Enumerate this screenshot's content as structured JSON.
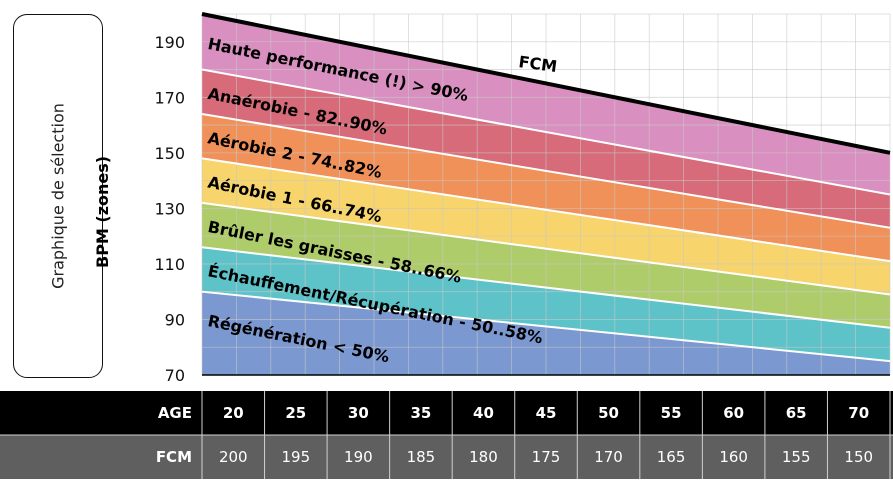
{
  "side_button": {
    "label": "Graphique de sélection"
  },
  "chart_data": {
    "type": "area",
    "ylabel": "BPM (zones)",
    "yticks": [
      190,
      170,
      150,
      130,
      110,
      90,
      70
    ],
    "ylim": [
      70,
      200
    ],
    "x": [
      20,
      25,
      30,
      35,
      40,
      45,
      50,
      55,
      60,
      65,
      70
    ],
    "fcm_label": "FCM",
    "fcm": [
      200,
      195,
      190,
      185,
      180,
      175,
      170,
      165,
      160,
      155,
      150
    ],
    "zones": [
      {
        "label": "Haute performance (!) > 90%",
        "from_pct": 90,
        "to_pct": 100,
        "color": "#d98fc0"
      },
      {
        "label": "Anaérobie - 82..90%",
        "from_pct": 82,
        "to_pct": 90,
        "color": "#d76b79"
      },
      {
        "label": "Aérobie 2 - 74..82%",
        "from_pct": 74,
        "to_pct": 82,
        "color": "#f0915a"
      },
      {
        "label": "Aérobie 1 - 66..74%",
        "from_pct": 66,
        "to_pct": 74,
        "color": "#f7d46c"
      },
      {
        "label": "Brûler les graisses - 58..66%",
        "from_pct": 58,
        "to_pct": 66,
        "color": "#afcc6a"
      },
      {
        "label": "Échauffement/Récupération - 50..58%",
        "from_pct": 50,
        "to_pct": 58,
        "color": "#5ec3c9"
      },
      {
        "label": "Régénération < 50%",
        "from_pct": 0,
        "to_pct": 50,
        "color": "#7b98d0"
      }
    ],
    "grid": true
  },
  "table": {
    "age_label": "AGE",
    "fcm_label": "FCM",
    "ages": [
      "20",
      "25",
      "30",
      "35",
      "40",
      "45",
      "50",
      "55",
      "60",
      "65",
      "70"
    ],
    "fcm": [
      "200",
      "195",
      "190",
      "185",
      "180",
      "175",
      "170",
      "165",
      "160",
      "155",
      "150"
    ]
  }
}
